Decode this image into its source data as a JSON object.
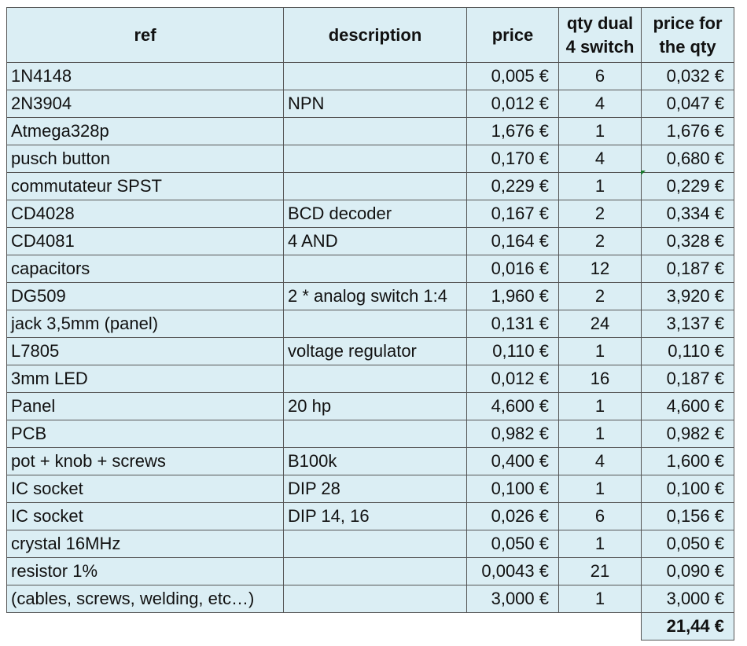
{
  "headers": [
    "ref",
    "description",
    "price",
    "qty dual 4 switch",
    "price for the qty"
  ],
  "rows": [
    {
      "ref": "1N4148",
      "description": "",
      "price": "0,005 €",
      "qty": "6",
      "total": "0,032 €"
    },
    {
      "ref": "2N3904",
      "description": "NPN",
      "price": "0,012 €",
      "qty": "4",
      "total": "0,047 €"
    },
    {
      "ref": "Atmega328p",
      "description": "",
      "price": "1,676 €",
      "qty": "1",
      "total": "1,676 €"
    },
    {
      "ref": "pusch button",
      "description": "",
      "price": "0,170 €",
      "qty": "4",
      "total": "0,680 €"
    },
    {
      "ref": "commutateur SPST",
      "description": "",
      "price": "0,229 €",
      "qty": "1",
      "total": "0,229 €"
    },
    {
      "ref": "CD4028",
      "description": "BCD decoder",
      "price": "0,167 €",
      "qty": "2",
      "total": "0,334 €"
    },
    {
      "ref": "CD4081",
      "description": "4 AND",
      "price": "0,164 €",
      "qty": "2",
      "total": "0,328 €"
    },
    {
      "ref": "capacitors",
      "description": "",
      "price": "0,016 €",
      "qty": "12",
      "total": "0,187 €"
    },
    {
      "ref": "DG509",
      "description": "2 * analog switch 1:4",
      "price": "1,960 €",
      "qty": "2",
      "total": "3,920 €"
    },
    {
      "ref": "jack 3,5mm (panel)",
      "description": "",
      "price": "0,131 €",
      "qty": "24",
      "total": "3,137 €"
    },
    {
      "ref": "L7805",
      "description": "voltage regulator",
      "price": "0,110 €",
      "qty": "1",
      "total": "0,110 €"
    },
    {
      "ref": "3mm LED",
      "description": "",
      "price": "0,012 €",
      "qty": "16",
      "total": "0,187 €"
    },
    {
      "ref": "Panel",
      "description": "20 hp",
      "price": "4,600 €",
      "qty": "1",
      "total": "4,600 €"
    },
    {
      "ref": "PCB",
      "description": "",
      "price": "0,982 €",
      "qty": "1",
      "total": "0,982 €"
    },
    {
      "ref": "pot + knob + screws",
      "description": "B100k",
      "price": "0,400 €",
      "qty": "4",
      "total": "1,600 €"
    },
    {
      "ref": "IC socket",
      "description": "DIP 28",
      "price": "0,100 €",
      "qty": "1",
      "total": "0,100 €"
    },
    {
      "ref": "IC socket",
      "description": "DIP 14, 16",
      "price": "0,026 €",
      "qty": "6",
      "total": "0,156 €"
    },
    {
      "ref": "crystal 16MHz",
      "description": "",
      "price": "0,050 €",
      "qty": "1",
      "total": "0,050 €"
    },
    {
      "ref": "resistor 1%",
      "description": "",
      "price": "0,0043 €",
      "qty": "21",
      "total": "0,090 €"
    },
    {
      "ref": "(cables, screws, welding, etc…)",
      "description": "",
      "price": "3,000 €",
      "qty": "1",
      "total": "3,000 €"
    }
  ],
  "grand_total": "21,44 €",
  "colors": {
    "cell_fill": "#dbeef4",
    "grid": "#555555",
    "comment_marker": "#1a7a2e"
  }
}
